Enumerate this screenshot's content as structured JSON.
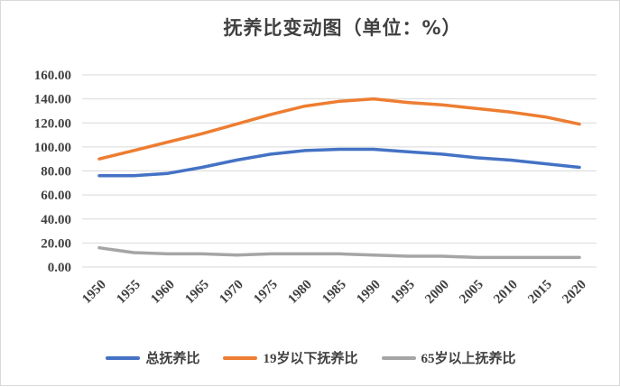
{
  "chart_data": {
    "type": "line",
    "title": "抚养比变动图（单位：%）",
    "xlabel": "",
    "ylabel": "",
    "x": [
      "1950",
      "1955",
      "1960",
      "1965",
      "1970",
      "1975",
      "1980",
      "1985",
      "1990",
      "1995",
      "2000",
      "2005",
      "2010",
      "2015",
      "2020"
    ],
    "ylim": [
      0,
      160
    ],
    "yticks": [
      "0.00",
      "20.00",
      "40.00",
      "60.00",
      "80.00",
      "100.00",
      "120.00",
      "140.00",
      "160.00"
    ],
    "grid": true,
    "legend_position": "bottom",
    "series": [
      {
        "name": "总抚养比",
        "color": "#4472c4",
        "values": [
          76,
          76,
          78,
          83,
          89,
          94,
          97,
          98,
          98,
          96,
          94,
          91,
          89,
          86,
          83
        ]
      },
      {
        "name": "19岁以下抚养比",
        "color": "#ed7d31",
        "values": [
          90,
          97,
          104,
          111,
          119,
          127,
          134,
          138,
          140,
          137,
          135,
          132,
          129,
          125,
          119
        ]
      },
      {
        "name": "65岁以上抚养比",
        "color": "#a5a5a5",
        "values": [
          16,
          12,
          11,
          11,
          10,
          11,
          11,
          11,
          10,
          9,
          9,
          8,
          8,
          8,
          8
        ]
      }
    ]
  }
}
